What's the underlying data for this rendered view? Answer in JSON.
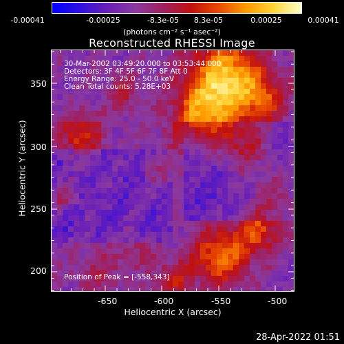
{
  "colorbar": {
    "gradient": [
      "#0000ff",
      "#3010e0",
      "#6a1fb8",
      "#8a3aa0",
      "#a02060",
      "#c01010",
      "#e84a00",
      "#ff9a00",
      "#ffd43a",
      "#ffffc8"
    ],
    "ticks": [
      "-0.00041",
      "-0.00025",
      "-8.3e-05",
      "8.3e-05",
      "0.00025",
      "0.00041"
    ],
    "units": "(photons cm⁻² s⁻¹ asec⁻²)"
  },
  "title": "Reconstructed RHESSI Image",
  "overlay": {
    "time": "30-Mar-2002 03:49:20.000 to 03:53:44.000",
    "detectors": "Detectors: 3F 4F 5F 6F 7F 8F  Att 0",
    "energy": "Energy Range: 25.0 - 50.0 keV",
    "clean": "Clean     Total counts: 5.28E+03",
    "peak": "Position of Peak = [-558,343]"
  },
  "axes": {
    "xlabel": "Heliocentric X (arcsec)",
    "ylabel": "Heliocentric Y (arcsec)",
    "xticks": [
      "-650",
      "-600",
      "-550",
      "-500"
    ],
    "yticks": [
      "350",
      "300",
      "250",
      "200"
    ]
  },
  "timestamp": "28-Apr-2022 01:51"
}
